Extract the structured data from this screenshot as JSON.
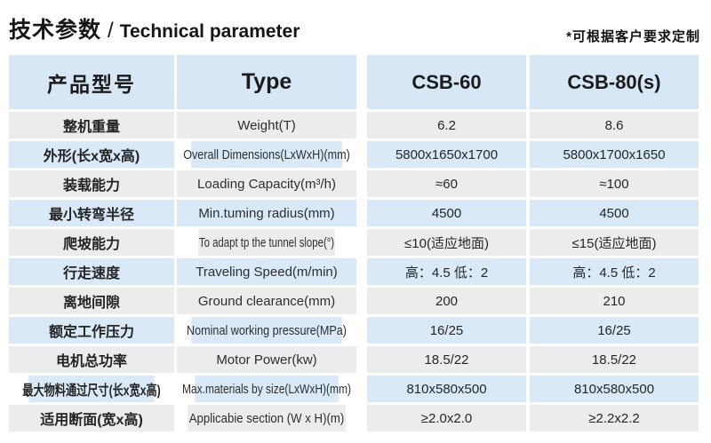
{
  "page": {
    "title_cn": "技术参数",
    "title_divider": "/",
    "title_en": "Technical parameter",
    "note": "*可根据客户要求定制"
  },
  "colors": {
    "header_bg": "#d7e7f5",
    "row_blue_bg": "#d9e9f7",
    "row_gray_bg": "#ececec",
    "text": "#2b2b2b"
  },
  "table": {
    "header": {
      "col_cn": "产品型号",
      "col_type": "Type",
      "col_model1": "CSB-60",
      "col_model2": "CSB-80(s)"
    },
    "rows": [
      {
        "cn": "整机重量",
        "en": "Weight(T)",
        "v1": "6.2",
        "v2": "8.6"
      },
      {
        "cn": "外形(长x宽x高)",
        "en": "Overall Dimensions(LxWxH)(mm)",
        "v1": "5800x1650x1700",
        "v2": "5800x1700x1650"
      },
      {
        "cn": "装载能力",
        "en": "Loading Capacity(m³/h)",
        "v1": "≈60",
        "v2": "≈100"
      },
      {
        "cn": "最小转弯半径",
        "en": "Min.tuming radius(mm)",
        "v1": "4500",
        "v2": "4500"
      },
      {
        "cn": "爬坡能力",
        "en": "To adapt tp the tunnel slope(°)",
        "v1": "≤10(适应地面)",
        "v2": "≤15(适应地面)"
      },
      {
        "cn": "行走速度",
        "en": "Traveling Speed(m/min)",
        "v1": "高：4.5 低：2",
        "v2": "高：4.5 低：2"
      },
      {
        "cn": "离地间隙",
        "en": "Ground clearance(mm)",
        "v1": "200",
        "v2": "210"
      },
      {
        "cn": "额定工作压力",
        "en": "Nominal working pressure(MPa)",
        "v1": "16/25",
        "v2": "16/25"
      },
      {
        "cn": "电机总功率",
        "en": "Motor Power(kw)",
        "v1": "18.5/22",
        "v2": "18.5/22"
      },
      {
        "cn": "最大物料通过尺寸(长x宽x高)",
        "en": "Max.materials by size(LxWxH)(mm)",
        "v1": "810x580x500",
        "v2": "810x580x500"
      },
      {
        "cn": "适用断面(宽x高)",
        "en": "Applicabie section (W x H)(m)",
        "v1": "≥2.0x2.0",
        "v2": "≥2.2x2.2"
      }
    ]
  }
}
